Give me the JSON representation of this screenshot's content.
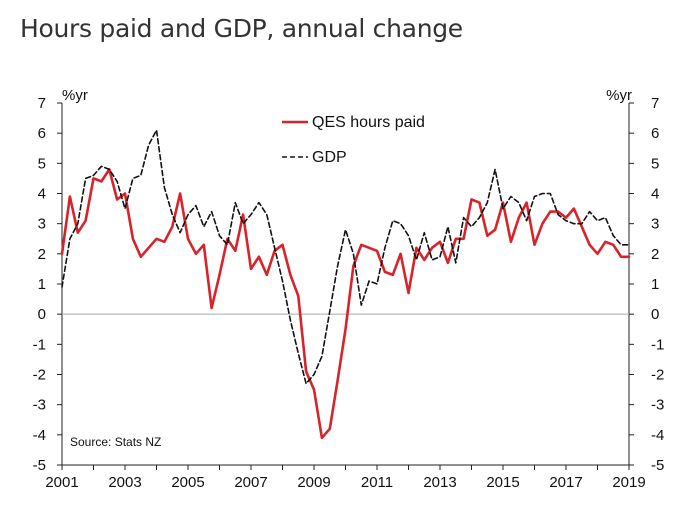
{
  "chart_data": {
    "type": "line",
    "title": "Hours paid and GDP, annual change",
    "ylabel_left": "%yr",
    "ylabel_right": "%yr",
    "source": "Source: Stats NZ",
    "ylim": [
      -5,
      7
    ],
    "yticks": [
      7,
      6,
      5,
      4,
      3,
      2,
      1,
      0,
      -1,
      -2,
      -3,
      -4,
      -5
    ],
    "xlim": [
      2001.0,
      2019.0
    ],
    "xticks": [
      "2001",
      "2003",
      "2005",
      "2007",
      "2009",
      "2011",
      "2013",
      "2015",
      "2017",
      "2019"
    ],
    "series": [
      {
        "name": "QES hours paid",
        "color": "#d9232a",
        "style": "solid",
        "x": [
          2001.0,
          2001.25,
          2001.5,
          2001.75,
          2002.0,
          2002.25,
          2002.5,
          2002.75,
          2003.0,
          2003.25,
          2003.5,
          2003.75,
          2004.0,
          2004.25,
          2004.5,
          2004.75,
          2005.0,
          2005.25,
          2005.5,
          2005.75,
          2006.0,
          2006.25,
          2006.5,
          2006.75,
          2007.0,
          2007.25,
          2007.5,
          2007.75,
          2008.0,
          2008.25,
          2008.5,
          2008.75,
          2009.0,
          2009.25,
          2009.5,
          2009.75,
          2010.0,
          2010.25,
          2010.5,
          2010.75,
          2011.0,
          2011.25,
          2011.5,
          2011.75,
          2012.0,
          2012.25,
          2012.5,
          2012.75,
          2013.0,
          2013.25,
          2013.5,
          2013.75,
          2014.0,
          2014.25,
          2014.5,
          2014.75,
          2015.0,
          2015.25,
          2015.5,
          2015.75,
          2016.0,
          2016.25,
          2016.5,
          2016.75,
          2017.0,
          2017.25,
          2017.5,
          2017.75,
          2018.0,
          2018.25,
          2018.5,
          2018.75,
          2019.0
        ],
        "values": [
          2.0,
          3.9,
          2.7,
          3.1,
          4.5,
          4.4,
          4.8,
          3.8,
          4.0,
          2.5,
          1.9,
          2.2,
          2.5,
          2.4,
          2.9,
          4.0,
          2.5,
          2.0,
          2.3,
          0.2,
          1.3,
          2.5,
          2.1,
          3.3,
          1.5,
          1.9,
          1.3,
          2.1,
          2.3,
          1.3,
          0.6,
          -1.9,
          -2.5,
          -4.1,
          -3.8,
          -2.2,
          -0.5,
          1.6,
          2.3,
          2.2,
          2.1,
          1.4,
          1.3,
          2.0,
          0.7,
          2.2,
          1.8,
          2.2,
          2.4,
          1.7,
          2.5,
          2.5,
          3.8,
          3.7,
          2.6,
          2.8,
          3.7,
          2.4,
          3.2,
          3.7,
          2.3,
          3.0,
          3.4,
          3.4,
          3.2,
          3.5,
          2.9,
          2.3,
          2.0,
          2.4,
          2.3,
          1.9,
          1.9
        ]
      },
      {
        "name": "GDP",
        "color": "#111111",
        "style": "dashed",
        "x": [
          2001.0,
          2001.25,
          2001.5,
          2001.75,
          2002.0,
          2002.25,
          2002.5,
          2002.75,
          2003.0,
          2003.25,
          2003.5,
          2003.75,
          2004.0,
          2004.25,
          2004.5,
          2004.75,
          2005.0,
          2005.25,
          2005.5,
          2005.75,
          2006.0,
          2006.25,
          2006.5,
          2006.75,
          2007.0,
          2007.25,
          2007.5,
          2007.75,
          2008.0,
          2008.25,
          2008.5,
          2008.75,
          2009.0,
          2009.25,
          2009.5,
          2009.75,
          2010.0,
          2010.25,
          2010.5,
          2010.75,
          2011.0,
          2011.25,
          2011.5,
          2011.75,
          2012.0,
          2012.25,
          2012.5,
          2012.75,
          2013.0,
          2013.25,
          2013.5,
          2013.75,
          2014.0,
          2014.25,
          2014.5,
          2014.75,
          2015.0,
          2015.25,
          2015.5,
          2015.75,
          2016.0,
          2016.25,
          2016.5,
          2016.75,
          2017.0,
          2017.25,
          2017.5,
          2017.75,
          2018.0,
          2018.25,
          2018.5,
          2018.75,
          2019.0
        ],
        "values": [
          0.9,
          2.5,
          3.0,
          4.5,
          4.6,
          4.9,
          4.8,
          4.4,
          3.5,
          4.5,
          4.6,
          5.6,
          6.1,
          4.2,
          3.3,
          2.7,
          3.3,
          3.6,
          2.9,
          3.4,
          2.6,
          2.3,
          3.7,
          3.0,
          3.3,
          3.7,
          3.3,
          2.2,
          1.1,
          -0.2,
          -1.3,
          -2.3,
          -2.0,
          -1.4,
          0.1,
          1.6,
          2.8,
          2.0,
          0.3,
          1.1,
          1.0,
          2.2,
          3.1,
          3.0,
          2.6,
          1.8,
          2.7,
          1.8,
          1.9,
          2.9,
          1.7,
          3.2,
          2.9,
          3.2,
          3.7,
          4.8,
          3.5,
          3.9,
          3.7,
          3.1,
          3.9,
          4.0,
          4.0,
          3.3,
          3.1,
          3.0,
          3.0,
          3.4,
          3.1,
          3.2,
          2.6,
          2.3,
          2.3
        ]
      }
    ],
    "legend": [
      "QES hours paid",
      "GDP"
    ],
    "zero_line": true
  }
}
